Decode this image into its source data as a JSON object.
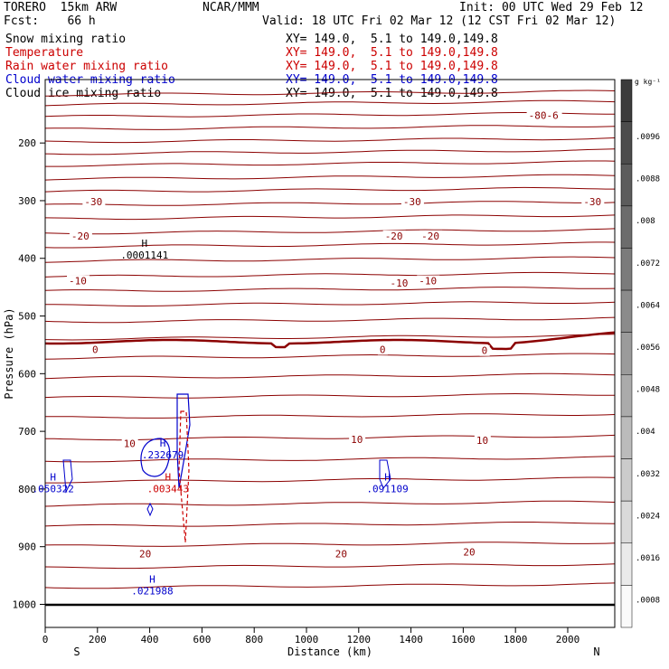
{
  "header": {
    "model": "TORERO  15km ARW",
    "center": "NCAR/MMM",
    "init": "Init: 00 UTC Wed 29 Feb 12",
    "fcst": "Fcst:    66 h",
    "valid": "Valid: 18 UTC Fri 02 Mar 12 (12 CST Fri 02 Mar 12)"
  },
  "legend": [
    {
      "label": "Snow mixing ratio",
      "xy": "XY= 149.0,  5.1 to 149.0,149.8",
      "color": "#000000"
    },
    {
      "label": "Temperature",
      "xy": "XY= 149.0,  5.1 to 149.0,149.8",
      "color": "#cc0000"
    },
    {
      "label": "Rain water mixing ratio",
      "xy": "XY= 149.0,  5.1 to 149.0,149.8",
      "color": "#cc0000"
    },
    {
      "label": "Cloud water mixing ratio",
      "xy": "XY= 149.0,  5.1 to 149.0,149.8",
      "color": "#0000cc"
    },
    {
      "label": "Cloud ice mixing ratio",
      "xy": "XY= 149.0,  5.1 to 149.0,149.8",
      "color": "#000000"
    }
  ],
  "chart_data": {
    "type": "contour-cross-section",
    "xlabel": "Distance (km)",
    "ylabel": "Pressure (hPa)",
    "xlim": [
      0,
      2180
    ],
    "ylim": [
      1040,
      90
    ],
    "x_ticks": [
      0,
      200,
      400,
      600,
      800,
      1000,
      1200,
      1400,
      1600,
      1800,
      2000
    ],
    "y_ticks": [
      200,
      300,
      400,
      500,
      600,
      700,
      800,
      900,
      1000
    ],
    "x_end_labels": {
      "left": "S",
      "right": "N"
    },
    "temperature_contour_labels": [
      {
        "text": "-30",
        "x": 150,
        "p": 305
      },
      {
        "text": "-30",
        "x": 1370,
        "p": 305
      },
      {
        "text": "-30",
        "x": 2060,
        "p": 305
      },
      {
        "text": "-20",
        "x": 100,
        "p": 364
      },
      {
        "text": "-20",
        "x": 1300,
        "p": 364
      },
      {
        "text": "-20",
        "x": 1440,
        "p": 364
      },
      {
        "text": "-10",
        "x": 90,
        "p": 442
      },
      {
        "text": "-10",
        "x": 1320,
        "p": 446
      },
      {
        "text": "-10",
        "x": 1430,
        "p": 442
      },
      {
        "text": "0",
        "x": 180,
        "p": 561
      },
      {
        "text": "0",
        "x": 1280,
        "p": 561
      },
      {
        "text": "0",
        "x": 1670,
        "p": 563
      },
      {
        "text": "10",
        "x": 300,
        "p": 724
      },
      {
        "text": "10",
        "x": 1170,
        "p": 717
      },
      {
        "text": "10",
        "x": 1650,
        "p": 719
      },
      {
        "text": "20",
        "x": 360,
        "p": 915
      },
      {
        "text": "20",
        "x": 1110,
        "p": 915
      },
      {
        "text": "20",
        "x": 1600,
        "p": 912
      },
      {
        "text": "-80-6",
        "x": 1850,
        "p": 155
      }
    ],
    "maxima": [
      {
        "label": "H",
        "value": ".0001141",
        "x": 380,
        "p": 399,
        "color": "#000000"
      },
      {
        "label": "H",
        "value": ".232679",
        "x": 450,
        "p": 745,
        "color": "#0000cc"
      },
      {
        "label": "H",
        "value": ".050322",
        "x": 30,
        "p": 804,
        "color": "#0000cc"
      },
      {
        "label": "H",
        "value": ".003443",
        "x": 470,
        "p": 804,
        "color": "#cc0000"
      },
      {
        "label": "H",
        "value": ".091109",
        "x": 1310,
        "p": 804,
        "color": "#0000cc"
      },
      {
        "label": "H",
        "value": ".021988",
        "x": 410,
        "p": 981,
        "color": "#0000cc"
      }
    ],
    "colorbar": {
      "unit": "g kg⁻¹",
      "labels": [
        ".0096",
        ".0088",
        ".008",
        ".0072",
        ".0064",
        ".0056",
        ".0048",
        ".004",
        ".0032",
        ".0024",
        ".0016",
        ".0008"
      ],
      "levels": 12
    }
  },
  "colors": {
    "temperature": "#8b0000",
    "cloud_water": "#0000cc",
    "rain": "#cc0000",
    "axis": "#000000"
  }
}
